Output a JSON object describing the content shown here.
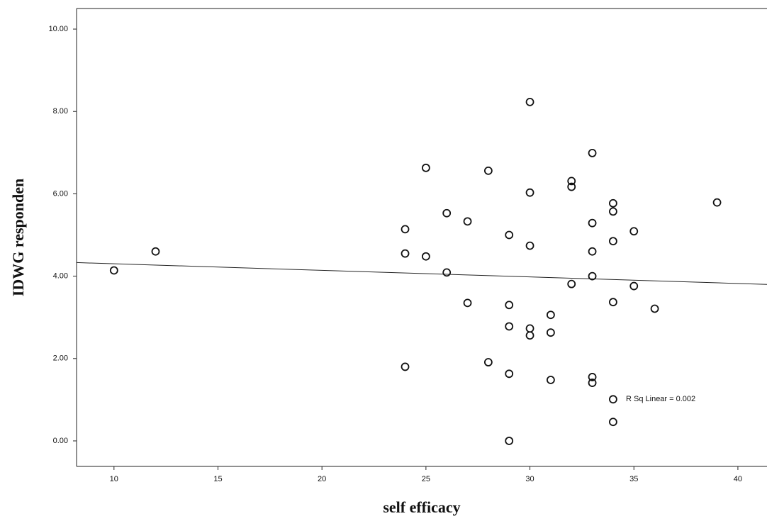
{
  "chart_data": {
    "type": "scatter",
    "x_label": "self efficacy",
    "y_label": "IDWG responden",
    "annotation": "R Sq Linear = 0.002",
    "x": [
      10,
      12,
      24,
      24,
      24,
      25,
      25,
      26,
      26,
      27,
      27,
      28,
      28,
      29,
      29,
      29,
      29,
      29,
      30,
      30,
      30,
      30,
      30,
      31,
      31,
      31,
      32,
      32,
      32,
      33,
      33,
      33,
      33,
      33,
      33,
      34,
      34,
      34,
      34,
      34,
      34,
      35,
      35,
      36,
      39
    ],
    "values": [
      4.14,
      4.6,
      5.14,
      4.55,
      1.8,
      6.63,
      4.48,
      5.53,
      4.09,
      5.33,
      3.35,
      6.56,
      1.91,
      5.0,
      3.3,
      2.78,
      1.63,
      0,
      8.23,
      6.03,
      4.74,
      2.73,
      2.56,
      3.06,
      2.63,
      1.48,
      6.31,
      6.17,
      3.81,
      6.99,
      5.29,
      4.6,
      4.0,
      1.55,
      1.41,
      5.77,
      5.57,
      4.85,
      3.37,
      1.01,
      0.46,
      5.09,
      3.76,
      3.21,
      5.79
    ],
    "color": "#111111",
    "fit_line": {
      "x": [
        8.2,
        41.4
      ],
      "y": [
        4.33,
        3.8
      ]
    },
    "xlim": [
      8.2,
      41.4
    ],
    "ylim": [
      -0.62,
      10.5
    ],
    "xticks": [
      10,
      15,
      20,
      25,
      30,
      35,
      40
    ],
    "yticks": [
      {
        "value": 0,
        "label": "0.00"
      },
      {
        "value": 2,
        "label": "2.00"
      },
      {
        "value": 4,
        "label": "4.00"
      },
      {
        "value": 6,
        "label": "6.00"
      },
      {
        "value": 8,
        "label": "8.00"
      },
      {
        "value": 10,
        "label": "10.00"
      }
    ]
  }
}
